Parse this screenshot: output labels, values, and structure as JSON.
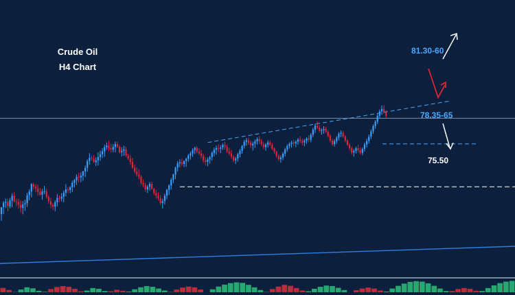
{
  "chart_data": {
    "type": "candlestick",
    "title_line1": "Crude Oil",
    "title_line2": "H4 Chart",
    "ylim": [
      72.0,
      84.5
    ],
    "colors": {
      "background": "#0c1f3c",
      "bull": "#3aa0ff",
      "bear": "#e0243a",
      "level_blue": "#4aa8ff",
      "level_white": "#ffffff",
      "arrow_red": "#e0243a",
      "arrow_white": "#ffffff",
      "osc_green": "#2fc07a",
      "osc_red": "#d83040"
    },
    "annotations": {
      "upper_target": {
        "label": "81.30-60",
        "value": 81.45,
        "color": "#4aa8ff"
      },
      "support_zone": {
        "label": "78.35-65",
        "value": 78.5,
        "color": "#4aa8ff"
      },
      "lower_target": {
        "label": "75.50",
        "value": 75.5,
        "color": "#ffffff"
      }
    },
    "horizontal_line_value": 80.3,
    "trendlines": [
      {
        "name": "upper channel",
        "x": [
          96,
          168
        ],
        "y": [
          78.6,
          81.7
        ]
      },
      {
        "name": "long-term support",
        "x": [
          0,
          192
        ],
        "y": [
          71.2,
          71.9
        ]
      }
    ],
    "candles": [
      [
        73.59,
        74.07,
        73.11,
        74.07
      ],
      [
        74.07,
        74.5,
        73.57,
        74.38
      ],
      [
        74.38,
        74.67,
        74.02,
        74.44
      ],
      [
        74.44,
        74.67,
        73.77,
        74.13
      ],
      [
        74.13,
        74.71,
        73.99,
        74.53
      ],
      [
        74.53,
        75.04,
        74.06,
        74.86
      ],
      [
        74.86,
        75.14,
        74.4,
        74.47
      ],
      [
        74.47,
        74.67,
        74.14,
        74.44
      ],
      [
        74.44,
        74.66,
        73.97,
        74.24
      ],
      [
        74.24,
        74.54,
        73.69,
        74.01
      ],
      [
        74.01,
        74.49,
        73.57,
        74.27
      ],
      [
        74.27,
        74.59,
        73.82,
        74.34
      ],
      [
        74.34,
        75.07,
        74.09,
        74.9
      ],
      [
        74.9,
        75.33,
        74.54,
        75.16
      ],
      [
        75.16,
        75.75,
        74.76,
        75.68
      ],
      [
        75.68,
        75.79,
        75.3,
        75.51
      ],
      [
        75.51,
        75.67,
        75.12,
        75.39
      ],
      [
        75.39,
        75.63,
        74.89,
        75.15
      ],
      [
        75.15,
        75.42,
        74.87,
        74.94
      ],
      [
        74.94,
        75.35,
        74.59,
        75.16
      ],
      [
        75.16,
        75.56,
        74.97,
        75.19
      ],
      [
        75.19,
        75.37,
        74.67,
        74.78
      ],
      [
        74.78,
        74.9,
        74.32,
        74.48
      ],
      [
        74.48,
        74.73,
        73.98,
        74.24
      ],
      [
        74.24,
        74.34,
        73.87,
        74.1
      ],
      [
        74.1,
        74.55,
        73.79,
        74.4
      ],
      [
        74.4,
        74.99,
        74.12,
        74.71
      ],
      [
        74.71,
        74.89,
        74.42,
        74.66
      ],
      [
        74.66,
        75.05,
        74.47,
        74.8
      ],
      [
        74.8,
        75.23,
        74.41,
        75.08
      ],
      [
        75.08,
        75.68,
        74.83,
        75.31
      ],
      [
        75.31,
        75.47,
        75.06,
        75.27
      ],
      [
        75.27,
        75.55,
        75.05,
        75.46
      ],
      [
        75.46,
        75.92,
        75.12,
        75.78
      ],
      [
        75.78,
        76.04,
        75.45,
        75.95
      ],
      [
        75.95,
        76.37,
        75.63,
        76.19
      ],
      [
        76.19,
        76.48,
        75.8,
        76.15
      ],
      [
        76.15,
        76.5,
        75.82,
        76.28
      ],
      [
        76.28,
        76.61,
        75.92,
        76.58
      ],
      [
        76.58,
        76.98,
        76.18,
        76.82
      ],
      [
        76.82,
        77.42,
        76.55,
        77.3
      ],
      [
        77.3,
        77.85,
        77.04,
        77.52
      ],
      [
        77.52,
        77.68,
        77.32,
        77.46
      ],
      [
        77.46,
        77.73,
        77.17,
        77.22
      ],
      [
        77.22,
        77.56,
        76.95,
        77.35
      ],
      [
        77.35,
        77.92,
        77.0,
        77.58
      ],
      [
        77.58,
        78.02,
        77.31,
        77.78
      ],
      [
        77.78,
        78.2,
        77.51,
        77.98
      ],
      [
        77.98,
        78.45,
        77.59,
        78.28
      ],
      [
        78.28,
        78.6,
        78.09,
        78.39
      ],
      [
        78.39,
        78.72,
        77.99,
        78.21
      ],
      [
        78.21,
        78.5,
        77.89,
        78.1
      ],
      [
        78.1,
        78.49,
        77.92,
        78.28
      ],
      [
        78.28,
        78.68,
        77.9,
        78.49
      ],
      [
        78.49,
        78.66,
        78.21,
        78.31
      ],
      [
        78.31,
        78.43,
        77.84,
        77.91
      ],
      [
        77.91,
        78.26,
        77.62,
        78.02
      ],
      [
        78.02,
        78.37,
        77.67,
        78.13
      ],
      [
        78.13,
        78.3,
        77.58,
        77.67
      ],
      [
        77.67,
        77.81,
        77.38,
        77.47
      ],
      [
        77.47,
        77.71,
        77.04,
        77.24
      ],
      [
        77.24,
        77.52,
        76.76,
        76.83
      ],
      [
        76.83,
        77.07,
        76.43,
        76.57
      ],
      [
        76.57,
        76.87,
        76.21,
        76.35
      ],
      [
        76.35,
        76.72,
        76.02,
        76.21
      ],
      [
        76.21,
        76.31,
        75.63,
        75.77
      ],
      [
        75.77,
        76.01,
        75.47,
        75.63
      ],
      [
        75.63,
        75.79,
        75.14,
        75.31
      ],
      [
        75.31,
        75.62,
        75.06,
        75.5
      ],
      [
        75.5,
        75.84,
        75.23,
        75.7
      ],
      [
        75.7,
        75.85,
        75.29,
        75.35
      ],
      [
        75.35,
        75.43,
        74.91,
        75.06
      ],
      [
        75.06,
        75.29,
        74.67,
        74.88
      ],
      [
        74.88,
        75.11,
        74.53,
        74.69
      ],
      [
        74.69,
        74.93,
        74.21,
        74.35
      ],
      [
        74.35,
        74.66,
        73.96,
        74.49
      ],
      [
        74.49,
        75.03,
        74.26,
        74.87
      ],
      [
        74.87,
        75.36,
        74.63,
        75.28
      ],
      [
        75.28,
        75.68,
        74.92,
        75.58
      ],
      [
        75.58,
        76.12,
        75.29,
        75.99
      ],
      [
        75.99,
        76.42,
        75.76,
        76.36
      ],
      [
        76.36,
        76.91,
        76.03,
        76.84
      ],
      [
        76.84,
        77.29,
        76.57,
        77.14
      ],
      [
        77.14,
        77.43,
        76.87,
        77.22
      ],
      [
        77.22,
        77.47,
        76.97,
        77.09
      ],
      [
        77.09,
        77.35,
        76.88,
        77.3
      ],
      [
        77.3,
        77.53,
        76.89,
        77.46
      ],
      [
        77.46,
        77.79,
        77.26,
        77.69
      ],
      [
        77.69,
        77.96,
        77.4,
        77.84
      ],
      [
        77.84,
        78.19,
        77.6,
        78.06
      ],
      [
        78.06,
        78.31,
        77.79,
        78.23
      ],
      [
        78.23,
        78.32,
        77.84,
        77.97
      ],
      [
        77.97,
        78.19,
        77.72,
        77.83
      ],
      [
        77.83,
        78.08,
        77.49,
        77.66
      ],
      [
        77.66,
        77.8,
        77.18,
        77.35
      ],
      [
        77.35,
        77.57,
        76.99,
        77.24
      ],
      [
        77.24,
        77.55,
        76.93,
        77.41
      ],
      [
        77.41,
        77.68,
        77.11,
        77.58
      ],
      [
        77.58,
        77.98,
        77.34,
        77.87
      ],
      [
        77.87,
        78.25,
        77.63,
        78.09
      ],
      [
        78.09,
        78.38,
        77.75,
        78.21
      ],
      [
        78.21,
        78.49,
        77.91,
        78.16
      ],
      [
        78.16,
        78.42,
        77.86,
        78.25
      ],
      [
        78.25,
        78.55,
        78.07,
        78.43
      ],
      [
        78.43,
        78.65,
        78.1,
        78.29
      ],
      [
        78.29,
        78.46,
        77.86,
        77.97
      ],
      [
        77.97,
        78.22,
        77.7,
        77.84
      ],
      [
        77.84,
        78.08,
        77.45,
        77.6
      ],
      [
        77.6,
        77.72,
        77.22,
        77.35
      ],
      [
        77.35,
        77.6,
        77.09,
        77.48
      ],
      [
        77.48,
        77.89,
        77.26,
        77.78
      ],
      [
        77.78,
        78.15,
        77.55,
        78.02
      ],
      [
        78.02,
        78.42,
        77.82,
        78.36
      ],
      [
        78.36,
        78.78,
        78.17,
        78.65
      ],
      [
        78.65,
        78.92,
        78.38,
        78.76
      ],
      [
        78.76,
        78.93,
        78.44,
        78.58
      ],
      [
        78.58,
        78.74,
        78.23,
        78.4
      ],
      [
        78.4,
        78.66,
        78.04,
        78.52
      ],
      [
        78.52,
        78.81,
        78.23,
        78.69
      ],
      [
        78.69,
        78.97,
        78.45,
        78.84
      ],
      [
        78.84,
        79.04,
        78.49,
        78.7
      ],
      [
        78.7,
        78.84,
        78.36,
        78.49
      ],
      [
        78.49,
        78.63,
        78.12,
        78.28
      ],
      [
        78.28,
        78.56,
        78.02,
        78.45
      ],
      [
        78.45,
        78.75,
        78.24,
        78.61
      ],
      [
        78.61,
        78.74,
        78.34,
        78.43
      ],
      [
        78.43,
        78.58,
        78.06,
        78.18
      ],
      [
        78.18,
        78.26,
        77.81,
        77.95
      ],
      [
        77.95,
        78.03,
        77.53,
        77.66
      ],
      [
        77.66,
        77.79,
        77.31,
        77.44
      ],
      [
        77.44,
        77.7,
        77.18,
        77.55
      ],
      [
        77.55,
        77.93,
        77.36,
        77.82
      ],
      [
        77.82,
        78.22,
        77.62,
        78.12
      ],
      [
        78.12,
        78.46,
        77.96,
        78.35
      ],
      [
        78.35,
        78.62,
        78.18,
        78.51
      ],
      [
        78.51,
        78.73,
        78.24,
        78.6
      ],
      [
        78.6,
        78.79,
        78.36,
        78.53
      ],
      [
        78.53,
        78.75,
        78.28,
        78.66
      ],
      [
        78.66,
        78.92,
        78.44,
        78.8
      ],
      [
        78.8,
        79.02,
        78.57,
        78.71
      ],
      [
        78.71,
        78.88,
        78.41,
        78.6
      ],
      [
        78.6,
        78.83,
        78.34,
        78.72
      ],
      [
        78.72,
        78.97,
        78.51,
        78.88
      ],
      [
        78.88,
        79.11,
        78.63,
        78.79
      ],
      [
        78.79,
        79.26,
        78.61,
        79.14
      ],
      [
        79.14,
        79.64,
        78.96,
        79.5
      ],
      [
        79.5,
        79.94,
        79.27,
        79.78
      ],
      [
        79.78,
        80.08,
        79.55,
        79.63
      ],
      [
        79.63,
        79.82,
        79.3,
        79.41
      ],
      [
        79.41,
        79.59,
        79.15,
        79.48
      ],
      [
        79.48,
        79.74,
        79.21,
        79.55
      ],
      [
        79.55,
        79.69,
        79.26,
        79.35
      ],
      [
        79.35,
        79.48,
        78.94,
        79.06
      ],
      [
        79.06,
        79.19,
        78.61,
        78.73
      ],
      [
        78.73,
        78.87,
        78.35,
        78.48
      ],
      [
        78.48,
        78.83,
        78.31,
        78.69
      ],
      [
        78.69,
        79.05,
        78.5,
        78.94
      ],
      [
        78.94,
        79.33,
        78.74,
        79.21
      ],
      [
        79.21,
        79.45,
        78.98,
        79.28
      ],
      [
        79.28,
        79.4,
        78.93,
        79.02
      ],
      [
        79.02,
        79.12,
        78.62,
        78.75
      ],
      [
        78.75,
        78.84,
        78.36,
        78.44
      ],
      [
        78.44,
        78.56,
        78.05,
        78.21
      ],
      [
        78.21,
        78.32,
        77.75,
        77.9
      ],
      [
        77.9,
        78.14,
        77.61,
        78.02
      ],
      [
        78.02,
        78.31,
        77.83,
        78.2
      ],
      [
        78.2,
        78.43,
        77.91,
        78.06
      ],
      [
        78.06,
        78.24,
        77.76,
        77.88
      ],
      [
        77.88,
        78.26,
        77.7,
        78.15
      ],
      [
        78.15,
        78.6,
        77.97,
        78.46
      ],
      [
        78.46,
        78.88,
        78.25,
        78.7
      ],
      [
        78.7,
        79.16,
        78.52,
        79.01
      ],
      [
        79.01,
        79.52,
        78.84,
        79.38
      ],
      [
        79.38,
        79.88,
        79.21,
        79.75
      ],
      [
        79.75,
        80.17,
        79.56,
        80.06
      ],
      [
        80.06,
        80.62,
        79.9,
        80.48
      ],
      [
        80.48,
        80.92,
        80.28,
        80.78
      ],
      [
        80.78,
        81.18,
        80.54,
        80.95
      ],
      [
        80.95,
        81.21,
        80.62,
        80.71
      ],
      [
        80.71,
        80.86,
        80.32,
        80.46
      ]
    ],
    "oscillator": [
      -0.35,
      -0.18,
      0.02,
      0.22,
      0.4,
      0.32,
      0.12,
      -0.06,
      -0.26,
      -0.42,
      -0.5,
      -0.44,
      -0.28,
      -0.08,
      0.14,
      0.34,
      0.28,
      0.1,
      -0.08,
      -0.2,
      -0.12,
      0.06,
      0.24,
      0.4,
      0.5,
      0.44,
      0.3,
      0.14,
      -0.04,
      -0.22,
      -0.38,
      -0.46,
      -0.4,
      -0.22,
      0.0,
      0.24,
      0.46,
      0.62,
      0.74,
      0.8,
      0.76,
      0.6,
      0.4,
      0.18,
      -0.04,
      -0.26,
      -0.46,
      -0.6,
      -0.52,
      -0.34,
      -0.14,
      0.08,
      0.28,
      0.44,
      0.54,
      0.5,
      0.36,
      0.18,
      0.0,
      -0.16,
      -0.3,
      -0.38,
      -0.3,
      -0.14,
      0.06,
      0.3,
      0.52,
      0.7,
      0.84,
      0.9,
      0.86,
      0.72,
      0.52,
      0.3,
      0.1,
      -0.1,
      -0.26,
      -0.34,
      -0.28,
      -0.12,
      0.1,
      0.34,
      0.56,
      0.74,
      0.86,
      0.92
    ]
  }
}
